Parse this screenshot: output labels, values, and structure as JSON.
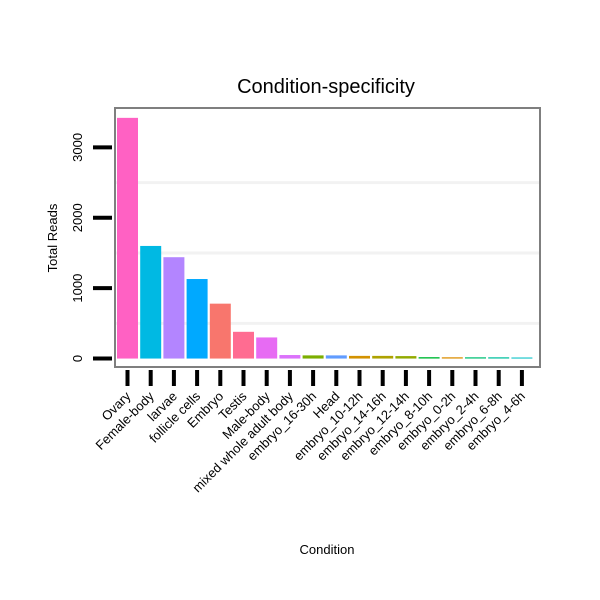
{
  "chart_data": {
    "type": "bar",
    "title": "Condition-specificity",
    "xlabel": "Condition",
    "ylabel": "Total Reads",
    "ylim": [
      -120,
      3560
    ],
    "yticks": [
      0,
      1000,
      2000,
      3000
    ],
    "ytick_labels": [
      "0",
      "1000",
      "2000",
      "3000"
    ],
    "grid": true,
    "categories": [
      "Ovary",
      "Female-body",
      "larvae",
      "follicle cells",
      "Embryo",
      "Testis",
      "Male-body",
      "mixed whole adult body",
      "embryo_16-30h",
      "Head",
      "embryo_10-12h",
      "embryo_14-16h",
      "embryo_12-14h",
      "embryo_8-10h",
      "embryo_0-2h",
      "embryo_2-4h",
      "embryo_6-8h",
      "embryo_4-6h"
    ],
    "values": [
      3420,
      1600,
      1440,
      1130,
      780,
      380,
      300,
      50,
      45,
      45,
      38,
      38,
      35,
      20,
      18,
      18,
      18,
      15
    ],
    "colors": [
      "#FF61C3",
      "#00B9E3",
      "#B385FF",
      "#00A9FF",
      "#F8766D",
      "#FF6C91",
      "#E76BF3",
      "#DB72FB",
      "#7CAE00",
      "#619CFF",
      "#D39200",
      "#AEA200",
      "#93AA00",
      "#00BA38",
      "#DB8E00",
      "#00BF74",
      "#00C19F",
      "#00BFC4"
    ]
  }
}
